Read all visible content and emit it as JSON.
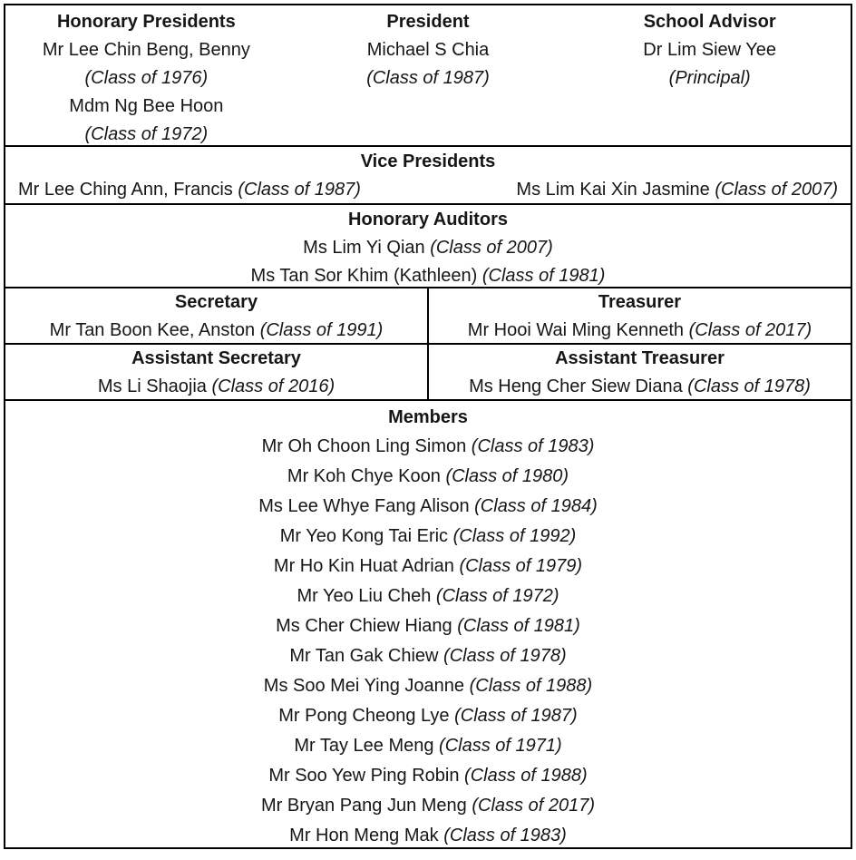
{
  "top_row": {
    "cells": [
      {
        "title": "Honorary Presidents",
        "entries": [
          {
            "name": "Mr Lee Chin Beng, Benny",
            "note": "(Class of 1976)"
          },
          {
            "name": "Mdm Ng Bee Hoon",
            "note": "(Class of 1972)"
          }
        ]
      },
      {
        "title": "President",
        "entries": [
          {
            "name": "Michael S Chia",
            "note": "(Class of 1987)"
          }
        ]
      },
      {
        "title": "School Advisor",
        "entries": [
          {
            "name": "Dr Lim Siew Yee",
            "note": "(Principal)"
          }
        ]
      }
    ]
  },
  "vice_presidents": {
    "title": "Vice Presidents",
    "entries": [
      {
        "name": "Mr Lee Ching Ann, Francis",
        "note": "(Class of 1987)"
      },
      {
        "name": "Ms Lim Kai Xin Jasmine",
        "note": "(Class of 2007)"
      }
    ]
  },
  "honorary_auditors": {
    "title": "Honorary Auditors",
    "entries": [
      {
        "name": "Ms Lim Yi Qian",
        "note": "(Class of 2007)"
      },
      {
        "name": "Ms Tan Sor Khim (Kathleen)",
        "note": "(Class of 1981)"
      }
    ]
  },
  "officers": {
    "secretary": {
      "title": "Secretary",
      "name": "Mr Tan Boon Kee, Anston",
      "note": "(Class of 1991)"
    },
    "treasurer": {
      "title": "Treasurer",
      "name": "Mr Hooi Wai Ming Kenneth",
      "note": "(Class of 2017)"
    },
    "assistant_secretary": {
      "title": "Assistant Secretary",
      "name": "Ms Li Shaojia",
      "note": "(Class of 2016)"
    },
    "assistant_treasurer": {
      "title": "Assistant Treasurer",
      "name": "Ms Heng Cher Siew Diana",
      "note": "(Class of 1978)"
    }
  },
  "members": {
    "title": "Members",
    "entries": [
      {
        "name": "Mr Oh Choon Ling Simon",
        "note": "(Class of 1983)"
      },
      {
        "name": "Mr Koh Chye Koon",
        "note": "(Class of 1980)"
      },
      {
        "name": "Ms Lee Whye Fang Alison",
        "note": "(Class of 1984)"
      },
      {
        "name": "Mr Yeo Kong Tai Eric",
        "note": "(Class of 1992)"
      },
      {
        "name": "Mr Ho Kin Huat Adrian",
        "note": "(Class of 1979)"
      },
      {
        "name": "Mr Yeo Liu Cheh",
        "note": "(Class of 1972)"
      },
      {
        "name": "Ms Cher Chiew Hiang",
        "note": "(Class of 1981)"
      },
      {
        "name": "Mr Tan Gak Chiew",
        "note": "(Class of 1978)"
      },
      {
        "name": "Ms Soo Mei Ying Joanne",
        "note": "(Class of 1988)"
      },
      {
        "name": "Mr Pong Cheong Lye",
        "note": "(Class of 1987)"
      },
      {
        "name": "Mr Tay Lee Meng",
        "note": "(Class of 1971)"
      },
      {
        "name": "Mr Soo Yew Ping Robin",
        "note": "(Class of 1988)"
      },
      {
        "name": "Mr Bryan Pang Jun Meng",
        "note": "(Class of 2017)"
      },
      {
        "name": "Mr Hon Meng Mak",
        "note": "(Class of 1983)"
      }
    ]
  }
}
